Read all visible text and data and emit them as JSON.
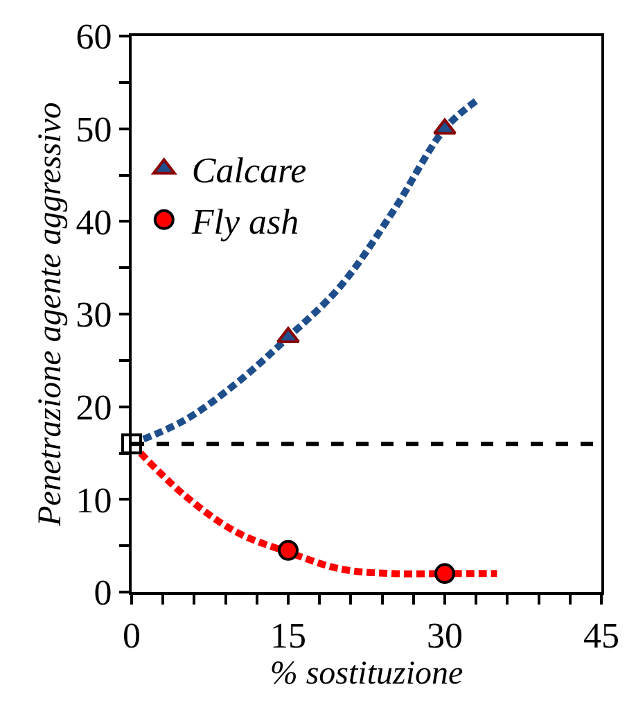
{
  "chart_data": {
    "type": "scatter",
    "xlabel": "% sostituzione",
    "ylabel": "Penetrazione agente aggressivo",
    "xlim": [
      0,
      45
    ],
    "ylim": [
      0,
      60
    ],
    "xticks": [
      0,
      {
        "value": 3,
        "label": null
      },
      {
        "value": 6,
        "label": null
      },
      {
        "value": 9,
        "label": null
      },
      {
        "value": 12,
        "label": null
      },
      15,
      {
        "value": 18,
        "label": null
      },
      {
        "value": 21,
        "label": null
      },
      {
        "value": 24,
        "label": null
      },
      {
        "value": 27,
        "label": null
      },
      30,
      {
        "value": 33,
        "label": null
      },
      {
        "value": 36,
        "label": null
      },
      {
        "value": 39,
        "label": null
      },
      {
        "value": 42,
        "label": null
      },
      45
    ],
    "yticks": [
      0,
      {
        "value": 5,
        "label": null
      },
      10,
      {
        "value": 15,
        "label": null
      },
      20,
      {
        "value": 25,
        "label": null
      },
      30,
      {
        "value": 35,
        "label": null
      },
      40,
      {
        "value": 45,
        "label": null
      },
      50,
      {
        "value": 55,
        "label": null
      },
      60
    ],
    "legend": "top left",
    "ref_lines": [
      {
        "axis": "y",
        "value": 16,
        "color": "#000000",
        "line_style": "dashed"
      }
    ],
    "series": [
      {
        "type": "line",
        "color": "#1f4e8c",
        "line_style": "dashed",
        "marker": "none",
        "x": [
          0,
          5,
          10,
          15,
          20,
          25,
          30,
          33
        ],
        "values": [
          16,
          18.5,
          22.5,
          27.5,
          33,
          41,
          50,
          53
        ]
      },
      {
        "type": "line",
        "color": "#ff0000",
        "line_style": "dashed",
        "marker": "none",
        "x": [
          0,
          5,
          10,
          15,
          20,
          25,
          30,
          35
        ],
        "values": [
          16,
          10.5,
          6.5,
          4.3,
          2.5,
          2,
          2,
          2
        ]
      },
      {
        "color": "#ffffff",
        "marker": "square",
        "x": [
          0
        ],
        "values": [
          16
        ]
      },
      {
        "name": "Calcare",
        "color": "#1f4e8c",
        "marker": "triangle",
        "x": [
          15,
          30
        ],
        "values": [
          27.5,
          50
        ]
      },
      {
        "name": "Fly ash",
        "color": "#ff0000",
        "marker": "circle",
        "x": [
          15,
          30
        ],
        "values": [
          4.5,
          2
        ]
      }
    ]
  }
}
